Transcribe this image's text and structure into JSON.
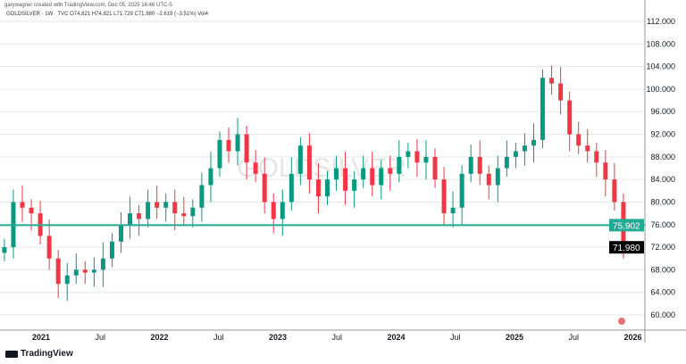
{
  "header": {
    "credit": "garywagner created with TradingView.com, Dec 05, 2025 16:46 UTC-5",
    "symbol_line": "GOLDSILVER · 1W · TVC  O74.821  H74.821  L71.729  C71.980  −2.619 (−3.51%)  Vol4"
  },
  "watermark": "GOLDSILVER",
  "footer": {
    "brand": "TradingView"
  },
  "colors": {
    "up": "#089981",
    "down": "#f23645",
    "hline": "#22ab94"
  },
  "chart_data": {
    "type": "candlestick",
    "title": "GOLDSILVER 1W",
    "ylim": [
      58,
      114
    ],
    "yticks": [
      "112.000",
      "108.000",
      "104.000",
      "100.000",
      "96.000",
      "92.000",
      "88.000",
      "84.000",
      "80.000",
      "76.000",
      "72.000",
      "68.000",
      "64.000",
      "60.000"
    ],
    "ytick_values": [
      112,
      108,
      104,
      100,
      96,
      92,
      88,
      84,
      80,
      76,
      72,
      68,
      64,
      60
    ],
    "xticks": [
      {
        "label": "2021",
        "t": 2021.0,
        "bold": true
      },
      {
        "label": "Jul",
        "t": 2021.5
      },
      {
        "label": "2022",
        "t": 2022.0,
        "bold": true
      },
      {
        "label": "Jul",
        "t": 2022.5
      },
      {
        "label": "2023",
        "t": 2023.0,
        "bold": true
      },
      {
        "label": "Jul",
        "t": 2023.5
      },
      {
        "label": "2024",
        "t": 2024.0,
        "bold": true
      },
      {
        "label": "Jul",
        "t": 2024.5
      },
      {
        "label": "2025",
        "t": 2025.0,
        "bold": true
      },
      {
        "label": "Jul",
        "t": 2025.5
      },
      {
        "label": "2026",
        "t": 2026.0,
        "bold": true
      }
    ],
    "xlim": [
      2020.69,
      2026.3
    ],
    "start_t": 2020.69,
    "step_t": 0.0758,
    "closes": [
      72,
      80,
      79,
      78,
      74,
      70,
      65.5,
      67,
      68,
      67.5,
      68,
      70,
      73,
      76,
      78,
      77,
      80,
      79,
      80,
      78,
      77.5,
      79,
      83,
      86,
      91,
      89,
      92,
      87,
      85,
      80,
      77,
      80,
      85,
      90,
      84,
      81,
      84,
      86,
      82,
      84,
      86,
      83,
      86,
      85,
      88,
      89,
      87,
      88,
      84,
      78,
      79,
      85,
      88,
      85,
      83,
      86,
      88,
      89,
      90,
      91,
      102,
      101,
      98,
      92,
      90,
      89,
      87,
      84,
      80,
      72
    ],
    "hline": {
      "value": 75.902,
      "label": "75.902"
    },
    "last_price": {
      "value": 71.98,
      "label": "71.980"
    }
  }
}
